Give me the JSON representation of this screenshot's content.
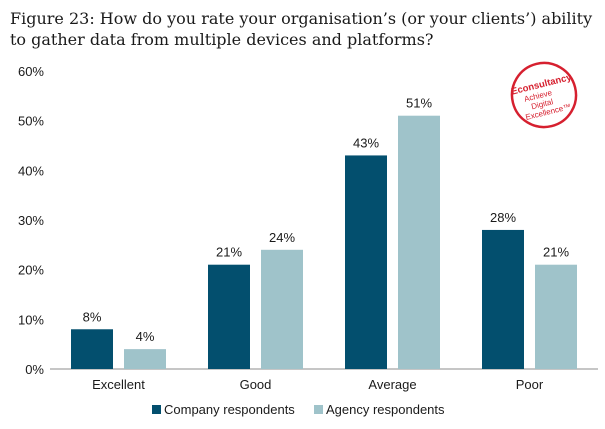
{
  "title": "Figure 23: How do you rate your organisation’s (or your clients’) ability to gather data from multiple devices and platforms?",
  "logo": {
    "name": "Econsultancy",
    "tagline_1": "Achieve",
    "tagline_2": "Digital",
    "tagline_3": "Excellence™",
    "color": "#d6202f"
  },
  "chart_data": {
    "type": "bar",
    "categories": [
      "Excellent",
      "Good",
      "Average",
      "Poor"
    ],
    "series": [
      {
        "name": "Company respondents",
        "values": [
          8,
          21,
          43,
          28
        ],
        "labels": [
          "8%",
          "21%",
          "43%",
          "28%"
        ],
        "color": "#034f6e"
      },
      {
        "name": "Agency respondents",
        "values": [
          4,
          24,
          51,
          21
        ],
        "labels": [
          "4%",
          "24%",
          "51%",
          "21%"
        ],
        "color": "#9fc3ca"
      }
    ],
    "ylim": [
      0,
      60
    ],
    "yticks": [
      0,
      10,
      20,
      30,
      40,
      50,
      60
    ],
    "ytick_labels": [
      "0%",
      "10%",
      "20%",
      "30%",
      "40%",
      "50%",
      "60%"
    ],
    "xlabel": "",
    "ylabel": "",
    "grid": false,
    "legend_position": "bottom"
  }
}
